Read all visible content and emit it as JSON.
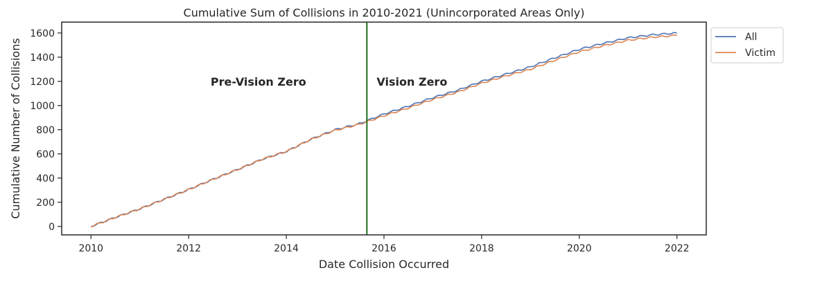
{
  "chart_data": {
    "type": "line",
    "title": "Cumulative Sum of Collisions in 2010-2021 (Unincorporated Areas Only)",
    "xlabel": "Date Collision Occurred",
    "ylabel": "Cumulative Number of Collisions",
    "xlim": [
      2009.4,
      2022.6
    ],
    "ylim": [
      -70,
      1690
    ],
    "xticks": [
      2010,
      2012,
      2014,
      2016,
      2018,
      2020,
      2022
    ],
    "xtick_labels": [
      "2010",
      "2012",
      "2014",
      "2016",
      "2018",
      "2020",
      "2022"
    ],
    "yticks": [
      0,
      200,
      400,
      600,
      800,
      1000,
      1200,
      1400,
      1600
    ],
    "ytick_labels": [
      "0",
      "200",
      "400",
      "600",
      "800",
      "1000",
      "1200",
      "1400",
      "1600"
    ],
    "grid": false,
    "legend": "upper-left outside right",
    "vline": {
      "x": 2015.65,
      "color": "#1a6e1a"
    },
    "annotations": [
      {
        "text": "Pre-Vision Zero",
        "x": 2012.45,
        "y": 1200
      },
      {
        "text": "Vision Zero",
        "x": 2015.85,
        "y": 1200
      }
    ],
    "series": [
      {
        "name": "All",
        "color": "#4c72b0",
        "x": [
          2010.0,
          2010.5,
          2011.0,
          2011.5,
          2012.0,
          2012.5,
          2013.0,
          2013.5,
          2014.0,
          2014.5,
          2015.0,
          2015.5,
          2016.0,
          2016.5,
          2017.0,
          2017.5,
          2018.0,
          2018.5,
          2019.0,
          2019.5,
          2020.0,
          2020.5,
          2021.0,
          2021.5,
          2022.0
        ],
        "y": [
          0,
          75,
          145,
          225,
          305,
          390,
          470,
          555,
          620,
          720,
          800,
          850,
          930,
          995,
          1065,
          1125,
          1200,
          1260,
          1320,
          1395,
          1465,
          1515,
          1560,
          1585,
          1600
        ]
      },
      {
        "name": "Victim",
        "color": "#dd8452",
        "x": [
          2010.0,
          2010.5,
          2011.0,
          2011.5,
          2012.0,
          2012.5,
          2013.0,
          2013.5,
          2014.0,
          2014.5,
          2015.0,
          2015.5,
          2016.0,
          2016.5,
          2017.0,
          2017.5,
          2018.0,
          2018.5,
          2019.0,
          2019.5,
          2020.0,
          2020.5,
          2021.0,
          2021.5,
          2022.0
        ],
        "y": [
          0,
          75,
          145,
          225,
          305,
          390,
          470,
          555,
          620,
          720,
          795,
          845,
          915,
          980,
          1050,
          1110,
          1185,
          1245,
          1300,
          1375,
          1445,
          1495,
          1540,
          1565,
          1580
        ]
      }
    ]
  }
}
